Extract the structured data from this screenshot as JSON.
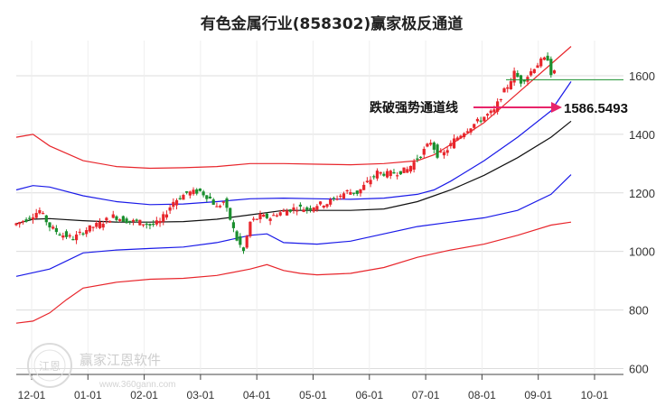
{
  "chart_data": {
    "type": "candlestick",
    "title": "有色金属行业(858302)赢家极反通道",
    "y_ticks": [
      600,
      800,
      1000,
      1200,
      1400,
      1600
    ],
    "ylim": [
      580,
      1720
    ],
    "x_labels": [
      "12-01",
      "01-01",
      "02-01",
      "03-01",
      "04-01",
      "05-01",
      "06-01",
      "07-01",
      "08-01",
      "09-01",
      "10-01"
    ],
    "grid": true,
    "candle_colors": {
      "up": "#e8252b",
      "down": "#1a8f2e"
    },
    "channel_lines": [
      {
        "color": "#e8252b",
        "points": [
          [
            0,
            1390
          ],
          [
            10,
            1400
          ],
          [
            20,
            1360
          ],
          [
            40,
            1310
          ],
          [
            60,
            1290
          ],
          [
            80,
            1284
          ],
          [
            100,
            1286
          ],
          [
            120,
            1290
          ],
          [
            140,
            1300
          ],
          [
            160,
            1300
          ],
          [
            180,
            1298
          ],
          [
            200,
            1296
          ],
          [
            220,
            1300
          ],
          [
            240,
            1310
          ],
          [
            250,
            1330
          ],
          [
            260,
            1365
          ],
          [
            280,
            1440
          ],
          [
            300,
            1540
          ],
          [
            320,
            1640
          ],
          [
            332,
            1700
          ]
        ]
      },
      {
        "color": "#1a1ae8",
        "points": [
          [
            0,
            1210
          ],
          [
            10,
            1225
          ],
          [
            20,
            1220
          ],
          [
            40,
            1190
          ],
          [
            60,
            1170
          ],
          [
            80,
            1160
          ],
          [
            100,
            1162
          ],
          [
            120,
            1170
          ],
          [
            140,
            1180
          ],
          [
            160,
            1182
          ],
          [
            180,
            1180
          ],
          [
            200,
            1178
          ],
          [
            220,
            1182
          ],
          [
            240,
            1195
          ],
          [
            250,
            1210
          ],
          [
            260,
            1240
          ],
          [
            280,
            1310
          ],
          [
            300,
            1390
          ],
          [
            320,
            1480
          ],
          [
            332,
            1580
          ]
        ]
      },
      {
        "color": "#111111",
        "points": [
          [
            0,
            1095
          ],
          [
            10,
            1110
          ],
          [
            20,
            1112
          ],
          [
            40,
            1105
          ],
          [
            60,
            1100
          ],
          [
            80,
            1100
          ],
          [
            100,
            1102
          ],
          [
            120,
            1110
          ],
          [
            140,
            1125
          ],
          [
            160,
            1140
          ],
          [
            180,
            1140
          ],
          [
            200,
            1140
          ],
          [
            220,
            1145
          ],
          [
            240,
            1170
          ],
          [
            250,
            1190
          ],
          [
            260,
            1210
          ],
          [
            280,
            1260
          ],
          [
            300,
            1320
          ],
          [
            320,
            1390
          ],
          [
            332,
            1445
          ]
        ]
      },
      {
        "color": "#1a1ae8",
        "points": [
          [
            0,
            915
          ],
          [
            20,
            940
          ],
          [
            40,
            995
          ],
          [
            60,
            1005
          ],
          [
            80,
            1010
          ],
          [
            100,
            1015
          ],
          [
            120,
            1030
          ],
          [
            140,
            1055
          ],
          [
            150,
            1060
          ],
          [
            160,
            1030
          ],
          [
            180,
            1025
          ],
          [
            200,
            1035
          ],
          [
            220,
            1060
          ],
          [
            240,
            1085
          ],
          [
            260,
            1100
          ],
          [
            280,
            1115
          ],
          [
            300,
            1140
          ],
          [
            320,
            1195
          ],
          [
            332,
            1262
          ]
        ]
      },
      {
        "color": "#e8252b",
        "points": [
          [
            0,
            755
          ],
          [
            10,
            762
          ],
          [
            20,
            790
          ],
          [
            30,
            835
          ],
          [
            40,
            875
          ],
          [
            60,
            895
          ],
          [
            80,
            905
          ],
          [
            100,
            908
          ],
          [
            120,
            918
          ],
          [
            140,
            940
          ],
          [
            150,
            955
          ],
          [
            160,
            935
          ],
          [
            170,
            925
          ],
          [
            180,
            920
          ],
          [
            200,
            925
          ],
          [
            220,
            945
          ],
          [
            240,
            980
          ],
          [
            260,
            1005
          ],
          [
            280,
            1025
          ],
          [
            300,
            1055
          ],
          [
            320,
            1090
          ],
          [
            332,
            1100
          ]
        ]
      }
    ],
    "guide_line": {
      "color": "#1a8f2e",
      "y": 1586.5493
    },
    "annotation": {
      "label": "跌破强势通道线",
      "value": "1586.5493",
      "color": "#e8256a"
    },
    "candle_trend": [
      [
        0,
        1090
      ],
      [
        8,
        1110
      ],
      [
        16,
        1140
      ],
      [
        22,
        1085
      ],
      [
        28,
        1060
      ],
      [
        36,
        1045
      ],
      [
        44,
        1075
      ],
      [
        52,
        1095
      ],
      [
        60,
        1120
      ],
      [
        68,
        1105
      ],
      [
        76,
        1100
      ],
      [
        82,
        1090
      ],
      [
        88,
        1100
      ],
      [
        96,
        1170
      ],
      [
        104,
        1200
      ],
      [
        112,
        1205
      ],
      [
        118,
        1180
      ],
      [
        122,
        1150
      ],
      [
        126,
        1170
      ],
      [
        130,
        1110
      ],
      [
        134,
        1040
      ],
      [
        138,
        1000
      ],
      [
        142,
        1100
      ],
      [
        148,
        1120
      ],
      [
        154,
        1115
      ],
      [
        158,
        1130
      ],
      [
        164,
        1140
      ],
      [
        170,
        1150
      ],
      [
        176,
        1145
      ],
      [
        182,
        1160
      ],
      [
        188,
        1165
      ],
      [
        194,
        1185
      ],
      [
        200,
        1205
      ],
      [
        206,
        1200
      ],
      [
        212,
        1235
      ],
      [
        218,
        1270
      ],
      [
        224,
        1265
      ],
      [
        230,
        1270
      ],
      [
        236,
        1280
      ],
      [
        244,
        1330
      ],
      [
        250,
        1375
      ],
      [
        254,
        1330
      ],
      [
        258,
        1335
      ],
      [
        264,
        1380
      ],
      [
        270,
        1410
      ],
      [
        276,
        1435
      ],
      [
        282,
        1460
      ],
      [
        288,
        1480
      ],
      [
        292,
        1530
      ],
      [
        296,
        1565
      ],
      [
        300,
        1610
      ],
      [
        304,
        1580
      ],
      [
        308,
        1600
      ],
      [
        312,
        1630
      ],
      [
        316,
        1650
      ],
      [
        320,
        1660
      ],
      [
        322,
        1610
      ]
    ]
  },
  "watermark": {
    "name": "赢家江恩软件",
    "url": "www.360gann.com",
    "seal_text": "江恩"
  }
}
